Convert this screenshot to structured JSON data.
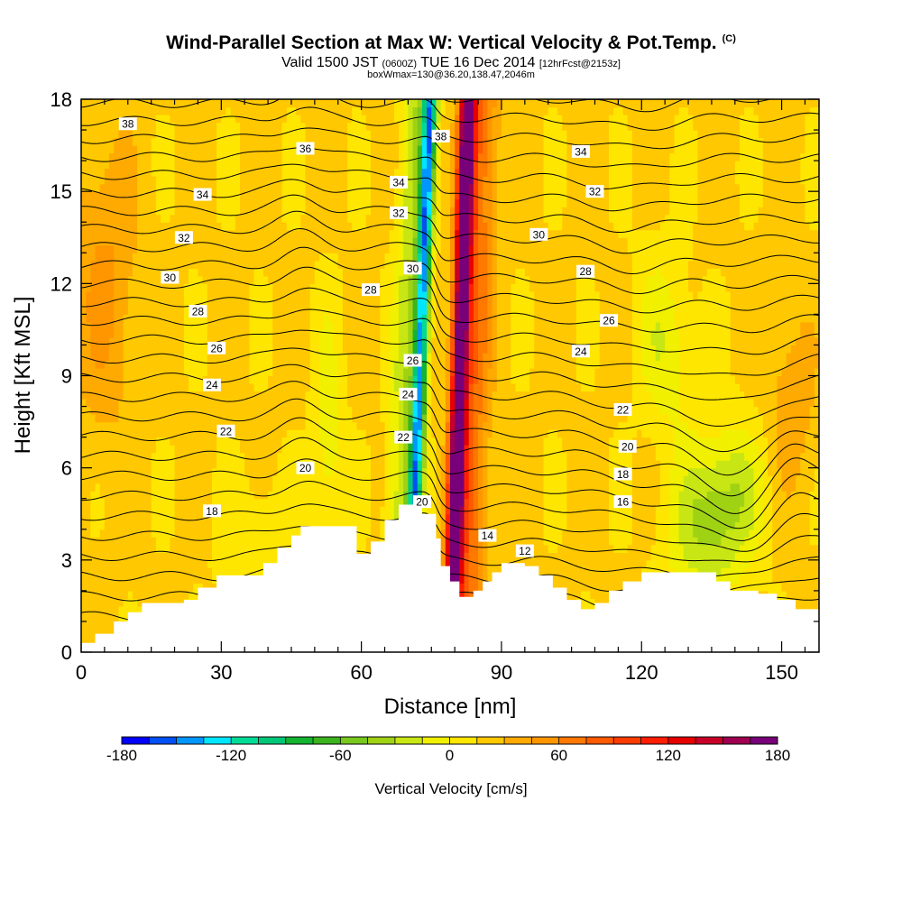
{
  "header": {
    "title": "Wind-Parallel Section at Max W: Vertical Velocity & Pot.Temp.",
    "title_mark": "(C)",
    "valid_prefix": "Valid 1500 JST",
    "valid_utc": "(0600Z)",
    "valid_date": "TUE 16 Dec 2014",
    "forecast_info": "[12hrFcst@2153z]",
    "box_info": "boxWmax=130@36.20,138.47,2046m"
  },
  "chart_data": {
    "type": "heatmap",
    "xlabel": "Distance [nm]",
    "ylabel": "Height [Kft MSL]",
    "xlim": [
      0,
      158
    ],
    "ylim": [
      0,
      18
    ],
    "x_ticks": [
      0,
      30,
      60,
      90,
      120,
      150
    ],
    "y_ticks": [
      0,
      3,
      6,
      9,
      12,
      15,
      18
    ],
    "colorbar": {
      "label": "Vertical Velocity [cm/s]",
      "tick_values": [
        -180,
        -120,
        -60,
        0,
        60,
        120,
        180
      ],
      "tick_labels": [
        "-180",
        "-120",
        "-60",
        "0",
        "60",
        "120",
        "180"
      ],
      "levels": [
        -180,
        -165,
        -150,
        -135,
        -120,
        -105,
        -90,
        -75,
        -60,
        -45,
        -30,
        -15,
        0,
        15,
        30,
        45,
        60,
        75,
        90,
        105,
        120,
        135,
        150,
        165,
        180
      ],
      "colors": [
        "#0000ff",
        "#0050f5",
        "#0096ff",
        "#00e6ff",
        "#00dc96",
        "#00c878",
        "#14b432",
        "#3cb41e",
        "#78c81e",
        "#a0d214",
        "#c8e614",
        "#f0f000",
        "#ffe600",
        "#ffc800",
        "#ffaa00",
        "#ff9600",
        "#ff7800",
        "#ff5a00",
        "#ff3c00",
        "#ff1e00",
        "#e60000",
        "#c80028",
        "#a00050",
        "#780078"
      ]
    },
    "terrain_kft": [
      [
        0,
        0.3
      ],
      [
        3,
        0.6
      ],
      [
        7,
        1.0
      ],
      [
        10,
        1.3
      ],
      [
        13,
        1.6
      ],
      [
        22,
        1.7
      ],
      [
        25,
        2.1
      ],
      [
        29,
        2.5
      ],
      [
        39,
        2.9
      ],
      [
        42,
        3.4
      ],
      [
        45,
        3.8
      ],
      [
        47,
        4.1
      ],
      [
        58,
        4.1
      ],
      [
        59,
        3.2
      ],
      [
        62,
        3.6
      ],
      [
        65,
        4.3
      ],
      [
        68,
        4.8
      ],
      [
        73,
        4.5
      ],
      [
        76,
        3.7
      ],
      [
        77,
        2.8
      ],
      [
        79,
        2.3
      ],
      [
        81,
        1.8
      ],
      [
        84,
        2.0
      ],
      [
        86,
        2.3
      ],
      [
        88,
        2.6
      ],
      [
        90,
        2.9
      ],
      [
        95,
        2.8
      ],
      [
        98,
        2.5
      ],
      [
        101,
        2.1
      ],
      [
        104,
        1.7
      ],
      [
        107,
        1.4
      ],
      [
        110,
        1.6
      ],
      [
        113,
        2.0
      ],
      [
        116,
        2.3
      ],
      [
        120,
        2.6
      ],
      [
        133,
        2.6
      ],
      [
        136,
        2.3
      ],
      [
        139,
        2.0
      ],
      [
        145,
        1.9
      ],
      [
        149,
        1.7
      ],
      [
        153,
        1.4
      ],
      [
        158,
        1.3
      ]
    ],
    "updraft": {
      "center_nm": 81,
      "peak_cms": 180
    },
    "downdraft": {
      "center_nm": 72.5,
      "peak_cms": -150
    },
    "theta_contour_labels": [
      {
        "text": "38",
        "x": 10,
        "y": 17.2
      },
      {
        "text": "36",
        "x": 48,
        "y": 16.4
      },
      {
        "text": "34",
        "x": 26,
        "y": 14.9
      },
      {
        "text": "32",
        "x": 22,
        "y": 13.5
      },
      {
        "text": "30",
        "x": 19,
        "y": 12.2
      },
      {
        "text": "28",
        "x": 25,
        "y": 11.1
      },
      {
        "text": "26",
        "x": 29,
        "y": 9.9
      },
      {
        "text": "24",
        "x": 28,
        "y": 8.7
      },
      {
        "text": "22",
        "x": 31,
        "y": 7.2
      },
      {
        "text": "20",
        "x": 48,
        "y": 6.0
      },
      {
        "text": "18",
        "x": 28,
        "y": 4.6
      },
      {
        "text": "28",
        "x": 62,
        "y": 11.8
      },
      {
        "text": "34",
        "x": 68,
        "y": 15.3
      },
      {
        "text": "32",
        "x": 68,
        "y": 14.3
      },
      {
        "text": "30",
        "x": 71,
        "y": 12.5
      },
      {
        "text": "26",
        "x": 71,
        "y": 9.5
      },
      {
        "text": "24",
        "x": 70,
        "y": 8.4
      },
      {
        "text": "22",
        "x": 69,
        "y": 7.0
      },
      {
        "text": "20",
        "x": 73,
        "y": 4.9
      },
      {
        "text": "38",
        "x": 77,
        "y": 16.8
      },
      {
        "text": "14",
        "x": 87,
        "y": 3.8
      },
      {
        "text": "12",
        "x": 95,
        "y": 3.3
      },
      {
        "text": "34",
        "x": 107,
        "y": 16.3
      },
      {
        "text": "32",
        "x": 110,
        "y": 15.0
      },
      {
        "text": "30",
        "x": 98,
        "y": 13.6
      },
      {
        "text": "28",
        "x": 108,
        "y": 12.4
      },
      {
        "text": "26",
        "x": 113,
        "y": 10.8
      },
      {
        "text": "24",
        "x": 107,
        "y": 9.8
      },
      {
        "text": "22",
        "x": 116,
        "y": 7.9
      },
      {
        "text": "20",
        "x": 117,
        "y": 6.7
      },
      {
        "text": "18",
        "x": 116,
        "y": 5.8
      },
      {
        "text": "16",
        "x": 116,
        "y": 4.9
      }
    ]
  }
}
